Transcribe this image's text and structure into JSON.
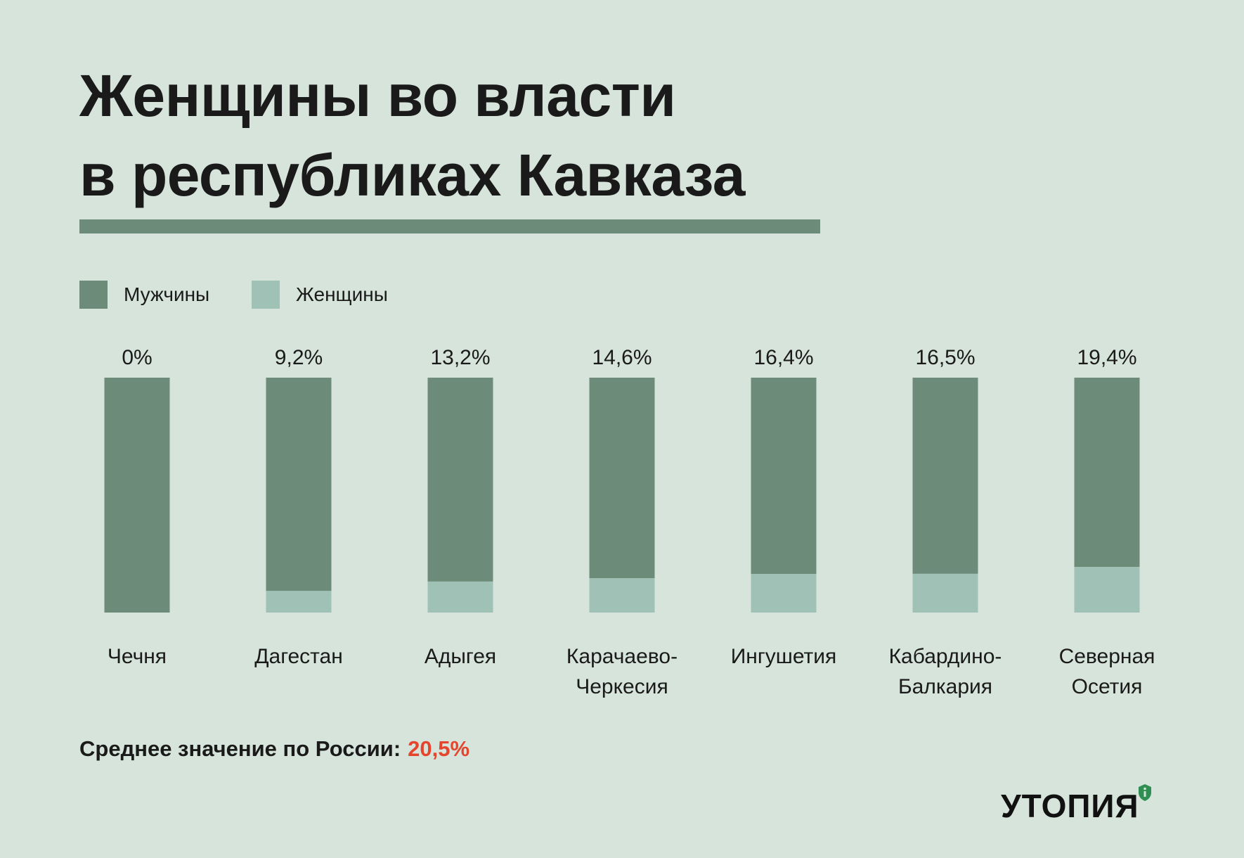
{
  "title_lines": [
    "Женщины во власти",
    "в республиках Кавказа"
  ],
  "legend": [
    {
      "label": "Мужчины",
      "color": "#6c8c79"
    },
    {
      "label": "Женщины",
      "color": "#a0c1b5"
    }
  ],
  "chart_data": {
    "type": "bar",
    "stacked": true,
    "unit": "%",
    "categories": [
      [
        "Чечня"
      ],
      [
        "Дагестан"
      ],
      [
        "Адыгея"
      ],
      [
        "Карачаево-",
        "Черкесия"
      ],
      [
        "Ингушетия"
      ],
      [
        "Кабардино-",
        "Балкария"
      ],
      [
        "Северная",
        "Осетия"
      ]
    ],
    "series": [
      {
        "name": "Женщины",
        "values": [
          0,
          9.2,
          13.2,
          14.6,
          16.4,
          16.5,
          19.4
        ],
        "color": "#a0c1b5"
      },
      {
        "name": "Мужчины",
        "values": [
          100,
          90.8,
          86.8,
          85.4,
          83.6,
          83.5,
          80.6
        ],
        "color": "#6c8c79"
      }
    ],
    "data_labels": [
      "0%",
      "9,2%",
      "13,2%",
      "14,6%",
      "16,4%",
      "16,5%",
      "19,4%"
    ],
    "ylim": [
      0,
      100
    ],
    "grid": false,
    "legend_position": "top-left"
  },
  "footnote": {
    "label": "Среднее значение по России:",
    "value": "20,5%"
  },
  "brand": {
    "name": "УТОПИЯ"
  }
}
